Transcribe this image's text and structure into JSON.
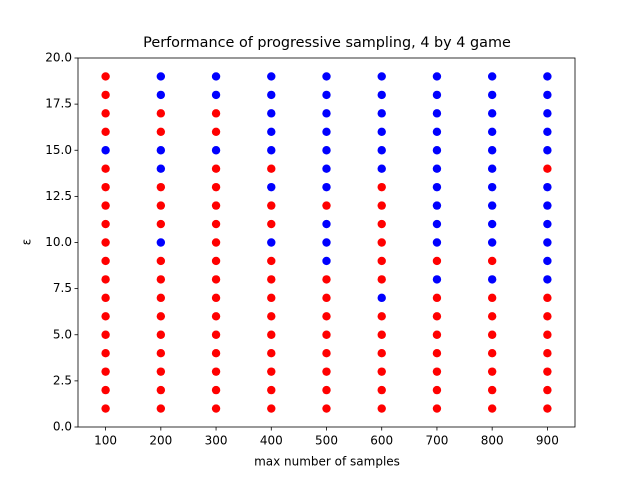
{
  "chart_data": {
    "type": "scatter",
    "title": "Performance of progressive sampling, 4 by 4 game",
    "xlabel": "max number of samples",
    "ylabel": "ε",
    "x": [
      100,
      100,
      100,
      100,
      100,
      100,
      100,
      100,
      100,
      100,
      100,
      100,
      100,
      100,
      100,
      100,
      100,
      100,
      100,
      200,
      200,
      200,
      200,
      200,
      200,
      200,
      200,
      200,
      200,
      200,
      200,
      200,
      200,
      200,
      200,
      200,
      200,
      200,
      300,
      300,
      300,
      300,
      300,
      300,
      300,
      300,
      300,
      300,
      300,
      300,
      300,
      300,
      300,
      300,
      300,
      300,
      300,
      400,
      400,
      400,
      400,
      400,
      400,
      400,
      400,
      400,
      400,
      400,
      400,
      400,
      400,
      400,
      400,
      400,
      400,
      400,
      500,
      500,
      500,
      500,
      500,
      500,
      500,
      500,
      500,
      500,
      500,
      500,
      500,
      500,
      500,
      500,
      500,
      500,
      500,
      600,
      600,
      600,
      600,
      600,
      600,
      600,
      600,
      600,
      600,
      600,
      600,
      600,
      600,
      600,
      600,
      600,
      600,
      600,
      700,
      700,
      700,
      700,
      700,
      700,
      700,
      700,
      700,
      700,
      700,
      700,
      700,
      700,
      700,
      700,
      700,
      700,
      700,
      800,
      800,
      800,
      800,
      800,
      800,
      800,
      800,
      800,
      800,
      800,
      800,
      800,
      800,
      800,
      800,
      800,
      800,
      800,
      900,
      900,
      900,
      900,
      900,
      900,
      900,
      900,
      900,
      900,
      900,
      900,
      900,
      900,
      900,
      900,
      900,
      900,
      900
    ],
    "y": [
      1,
      2,
      3,
      4,
      5,
      6,
      7,
      8,
      9,
      10,
      11,
      12,
      13,
      14,
      15,
      16,
      17,
      18,
      19,
      1,
      2,
      3,
      4,
      5,
      6,
      7,
      8,
      9,
      10,
      11,
      12,
      13,
      14,
      15,
      16,
      17,
      18,
      19,
      1,
      2,
      3,
      4,
      5,
      6,
      7,
      8,
      9,
      10,
      11,
      12,
      13,
      14,
      15,
      16,
      17,
      18,
      19,
      1,
      2,
      3,
      4,
      5,
      6,
      7,
      8,
      9,
      10,
      11,
      12,
      13,
      14,
      15,
      16,
      17,
      18,
      19,
      1,
      2,
      3,
      4,
      5,
      6,
      7,
      8,
      9,
      10,
      11,
      12,
      13,
      14,
      15,
      16,
      17,
      18,
      19,
      1,
      2,
      3,
      4,
      5,
      6,
      7,
      8,
      9,
      10,
      11,
      12,
      13,
      14,
      15,
      16,
      17,
      18,
      19,
      1,
      2,
      3,
      4,
      5,
      6,
      7,
      8,
      9,
      10,
      11,
      12,
      13,
      14,
      15,
      16,
      17,
      18,
      19,
      1,
      2,
      3,
      4,
      5,
      6,
      7,
      8,
      9,
      10,
      11,
      12,
      13,
      14,
      15,
      16,
      17,
      18,
      19,
      1,
      2,
      3,
      4,
      5,
      6,
      7,
      8,
      9,
      10,
      11,
      12,
      13,
      14,
      15,
      16,
      17,
      18,
      19
    ],
    "colors": [
      "red",
      "red",
      "red",
      "red",
      "red",
      "red",
      "red",
      "red",
      "red",
      "red",
      "red",
      "red",
      "red",
      "red",
      "blue",
      "red",
      "red",
      "red",
      "red",
      "red",
      "red",
      "red",
      "red",
      "red",
      "red",
      "red",
      "red",
      "red",
      "blue",
      "red",
      "red",
      "red",
      "blue",
      "blue",
      "red",
      "red",
      "blue",
      "blue",
      "red",
      "red",
      "red",
      "red",
      "red",
      "red",
      "red",
      "red",
      "red",
      "red",
      "red",
      "red",
      "red",
      "red",
      "blue",
      "red",
      "red",
      "blue",
      "blue",
      "red",
      "red",
      "red",
      "red",
      "red",
      "red",
      "red",
      "red",
      "red",
      "blue",
      "red",
      "red",
      "blue",
      "red",
      "blue",
      "blue",
      "blue",
      "blue",
      "blue",
      "red",
      "red",
      "red",
      "red",
      "red",
      "red",
      "red",
      "red",
      "blue",
      "blue",
      "blue",
      "red",
      "blue",
      "blue",
      "blue",
      "blue",
      "blue",
      "blue",
      "blue",
      "red",
      "red",
      "red",
      "red",
      "red",
      "red",
      "blue",
      "red",
      "red",
      "red",
      "red",
      "red",
      "red",
      "blue",
      "blue",
      "blue",
      "blue",
      "blue",
      "blue",
      "red",
      "red",
      "red",
      "red",
      "red",
      "red",
      "red",
      "blue",
      "red",
      "blue",
      "blue",
      "blue",
      "blue",
      "blue",
      "blue",
      "blue",
      "blue",
      "blue",
      "blue",
      "red",
      "red",
      "red",
      "red",
      "red",
      "red",
      "red",
      "blue",
      "red",
      "blue",
      "blue",
      "blue",
      "blue",
      "blue",
      "blue",
      "blue",
      "blue",
      "blue",
      "blue",
      "red",
      "red",
      "red",
      "red",
      "red",
      "red",
      "red",
      "blue",
      "blue",
      "blue",
      "blue",
      "blue",
      "blue",
      "red",
      "blue",
      "blue",
      "blue",
      "blue",
      "blue"
    ],
    "xlim": [
      50,
      950
    ],
    "xticks": [
      100,
      200,
      300,
      400,
      500,
      600,
      700,
      800,
      900
    ],
    "ylim": [
      0,
      20
    ],
    "yticks": [
      {
        "value": 0,
        "label": "0.0"
      },
      2.5,
      {
        "value": 5,
        "label": "5.0"
      },
      7.5,
      {
        "value": 10,
        "label": "10.0"
      },
      12.5,
      {
        "value": 15,
        "label": "15.0"
      },
      17.5,
      {
        "value": 20,
        "label": "20.0"
      }
    ],
    "grid": false
  }
}
